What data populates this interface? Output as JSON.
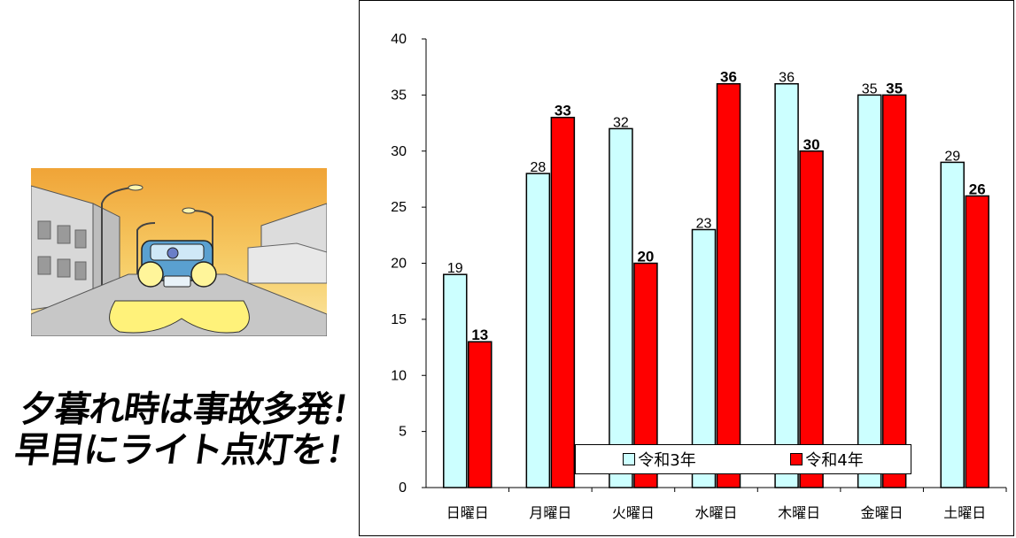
{
  "slogan": {
    "line1": "夕暮れ時は事故多発！",
    "line2": "早目にライト点灯を！"
  },
  "illustration": {
    "icon": "car-headlights-dusk-street-illustration",
    "sky_color": "#f2a93a",
    "beam_color": "#fff27a"
  },
  "chart_data": {
    "type": "bar",
    "categories": [
      "日曜日",
      "月曜日",
      "火曜日",
      "水曜日",
      "木曜日",
      "金曜日",
      "土曜日"
    ],
    "series": [
      {
        "name": "令和3年",
        "values": [
          19,
          28,
          32,
          23,
          36,
          35,
          29
        ],
        "color": "#ccffff"
      },
      {
        "name": "令和4年",
        "values": [
          13,
          33,
          20,
          36,
          30,
          35,
          26
        ],
        "color": "#ff0000"
      }
    ],
    "yticks": [
      0,
      5,
      10,
      15,
      20,
      25,
      30,
      35,
      40
    ],
    "ylim": [
      0,
      40
    ],
    "grid": false,
    "legend_position": "bottom-center-inside"
  }
}
